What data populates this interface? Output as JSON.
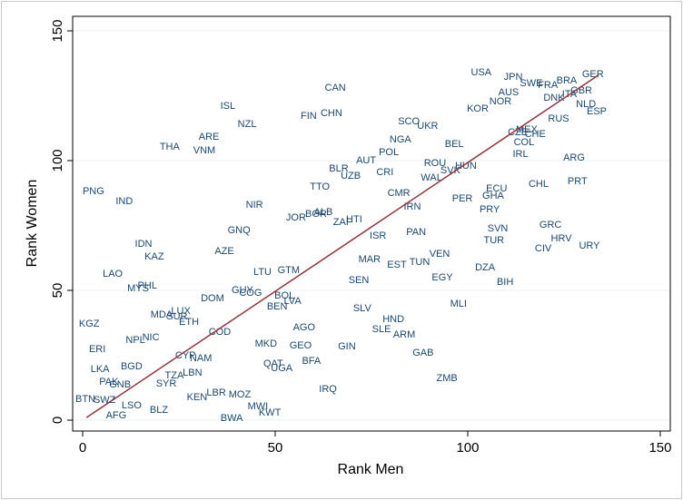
{
  "chart_data": {
    "type": "scatter",
    "x_label": "Rank Men",
    "y_label": "Rank Women",
    "xlim": [
      -2.6,
      152.6
    ],
    "ylim": [
      -4.2,
      155.6
    ],
    "xticks": [
      0,
      50,
      100,
      150
    ],
    "yticks": [
      0,
      50,
      100,
      150
    ],
    "grid": true,
    "grid_color": "#eaf2f3",
    "series": [
      {
        "color": "#1a476f",
        "labels": [
          "USA",
          "JPN",
          "SWE",
          "FRA",
          "BRA",
          "GER",
          "AUS",
          "NOR",
          "GBR",
          "DNK",
          "ITA",
          "NLD",
          "ESP",
          "KOR",
          "MEX",
          "CZE",
          "CHE",
          "RUS",
          "COL",
          "IRL",
          "ARG",
          "CHL",
          "PRT",
          "SCO",
          "UKR",
          "NGA",
          "BEL",
          "POL",
          "AUT",
          "ROU",
          "HUN",
          "SVK",
          "WAL",
          "CRI",
          "BLR",
          "UZB",
          "TTO",
          "CMR",
          "ECU",
          "GHA",
          "PER",
          "PRY",
          "IRN",
          "HTI",
          "ZAF",
          "ALB",
          "BGR",
          "JOR",
          "NIR",
          "GNQ",
          "ISR",
          "PAN",
          "SVN",
          "TUR",
          "GRC",
          "HRV",
          "URY",
          "CIV",
          "VEN",
          "MAR",
          "EST",
          "TUN",
          "DZA",
          "EGY",
          "BIH",
          "SEN",
          "GTM",
          "LTU",
          "AZE",
          "IDN",
          "KAZ",
          "LAO",
          "IND",
          "PNG",
          "THA",
          "VNM",
          "ARE",
          "ISL",
          "NZL",
          "CAN",
          "FIN",
          "CHN",
          "DOM",
          "GUY",
          "COG",
          "BOL",
          "LVA",
          "BEN",
          "MYS",
          "PHL",
          "MDA",
          "LUX",
          "SUR",
          "ETH",
          "KGZ",
          "SLV",
          "HND",
          "SLE",
          "ARM",
          "MLI",
          "AGO",
          "COD",
          "NPL",
          "NIC",
          "ERI",
          "GEO",
          "GIN",
          "MKD",
          "CYP",
          "NAM",
          "GAB",
          "BFA",
          "QAT",
          "UGA",
          "LKA",
          "BGD",
          "TZA",
          "LBN",
          "SYR",
          "PAK",
          "GNB",
          "ZMB",
          "IRQ",
          "BTN",
          "SWZ",
          "KEN",
          "LBR",
          "MOZ",
          "LSO",
          "MWI",
          "KWT",
          "AFG",
          "BLZ",
          "BWA"
        ],
        "x": [
          103.5,
          111.8,
          116.5,
          120.8,
          125.7,
          132.5,
          110.6,
          108.5,
          129.5,
          122.4,
          126.4,
          130.7,
          133.5,
          102.6,
          115.3,
          113,
          117.5,
          123.6,
          114.6,
          113.7,
          127.6,
          118.4,
          128.5,
          84.7,
          89.6,
          82.5,
          96.5,
          79.5,
          73.6,
          91.5,
          99.5,
          95.5,
          90.6,
          78.5,
          66.5,
          69.6,
          61.6,
          82.1,
          107.5,
          106.6,
          98.6,
          105.7,
          85.6,
          70.5,
          67.5,
          62.5,
          60.6,
          55.4,
          44.6,
          40.6,
          76.7,
          86.6,
          107.8,
          106.8,
          121.5,
          124.3,
          131.6,
          119.6,
          92.7,
          74.5,
          81.6,
          87.5,
          104.5,
          93.4,
          109.7,
          71.7,
          53.5,
          46.7,
          36.8,
          15.8,
          18.6,
          7.8,
          10.8,
          2.8,
          22.6,
          31.6,
          32.8,
          37.7,
          42.7,
          65.6,
          58.7,
          64.6,
          33.7,
          41.5,
          43.6,
          52.4,
          54.5,
          50.5,
          14.4,
          16.8,
          20.5,
          25.5,
          24.5,
          27.6,
          1.7,
          72.6,
          80.7,
          77.6,
          83.5,
          97.6,
          57.5,
          35.6,
          13.7,
          17.7,
          3.8,
          56.6,
          68.6,
          47.6,
          26.7,
          30.7,
          88.4,
          59.4,
          49.5,
          51.7,
          4.5,
          12.7,
          23.8,
          28.5,
          21.7,
          6.8,
          9.7,
          94.6,
          63.7,
          0.7,
          5.7,
          29.7,
          34.7,
          40.8,
          12.7,
          45.5,
          48.6,
          8.7,
          19.8,
          38.7
        ],
        "values": [
          133.9,
          132.2,
          129.7,
          129,
          130.8,
          133.2,
          126.2,
          122.7,
          126.9,
          124.1,
          125.5,
          121.7,
          118.9,
          119.9,
          111.9,
          110.8,
          110.1,
          116.1,
          107,
          102.4,
          101,
          90.9,
          92,
          115,
          113.3,
          108,
          106.3,
          103.1,
          100,
          99,
          97.9,
          96.2,
          93.4,
          95.5,
          96.9,
          94.1,
          89.9,
          87.4,
          89.2,
          86.4,
          85.3,
          81.1,
          82.2,
          77.3,
          76.2,
          80.1,
          79.4,
          78,
          82.9,
          73.1,
          71,
          72.4,
          73.8,
          69.2,
          75.2,
          69.9,
          67.1,
          66.1,
          64,
          61.9,
          59.8,
          60.8,
          58.7,
          54.9,
          53.1,
          53.8,
          57.7,
          57,
          65,
          67.8,
          62.9,
          56.3,
          84.3,
          88.1,
          105.2,
          103.8,
          109.1,
          121,
          114,
          128,
          117.1,
          118.2,
          46.9,
          50,
          49,
          47.9,
          45.8,
          43.7,
          50.7,
          51.7,
          40.6,
          42,
          39.9,
          37.8,
          37.1,
          43,
          38.8,
          35,
          32.9,
          44.8,
          35.7,
          33.9,
          30.8,
          31.8,
          27.3,
          28.7,
          28.3,
          29.4,
          24.8,
          23.8,
          25.9,
          22.7,
          21.7,
          19.9,
          19.6,
          20.6,
          17.1,
          18.2,
          14,
          14.7,
          13.6,
          16.1,
          11.9,
          8,
          7.7,
          8.7,
          10.5,
          9.8,
          5.6,
          5.2,
          2.8,
          1.7,
          3.8,
          0.7
        ]
      }
    ],
    "fit_line": {
      "color": "#90353b",
      "x": [
        1,
        134
      ],
      "values": [
        1,
        133
      ]
    }
  }
}
